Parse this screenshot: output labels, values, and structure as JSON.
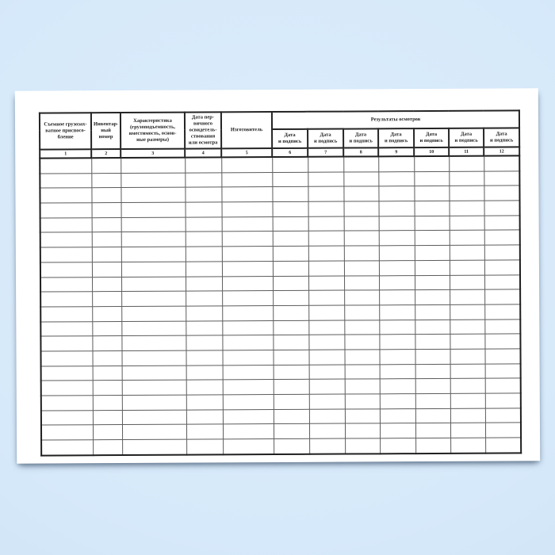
{
  "colors": {
    "background_center": "#ddeefc",
    "background_edge": "#c6daf0",
    "paper": "#ffffff",
    "grid_line": "#5c5c5c",
    "border_line": "#1f1f1f",
    "text": "#1a1a1a"
  },
  "table": {
    "headers": [
      "Съемное грузозах-\nватное приспосо-\nбление",
      "Инвентар-\nный номер",
      "Характеристика\n(грузоподъемность,\nвместимость, основ-\nные размеры)",
      "Дата пер-\nвичного\nосвидетель-\nствования\nили осмотра",
      "Изготовитель"
    ],
    "group_header": "Результаты осмотров",
    "sub_header": "Дата\nи подпись",
    "sub_header_count": 7,
    "numbers": [
      "1",
      "2",
      "3",
      "4",
      "5",
      "6",
      "7",
      "8",
      "9",
      "10",
      "11",
      "12"
    ],
    "body_row_count": 20
  }
}
